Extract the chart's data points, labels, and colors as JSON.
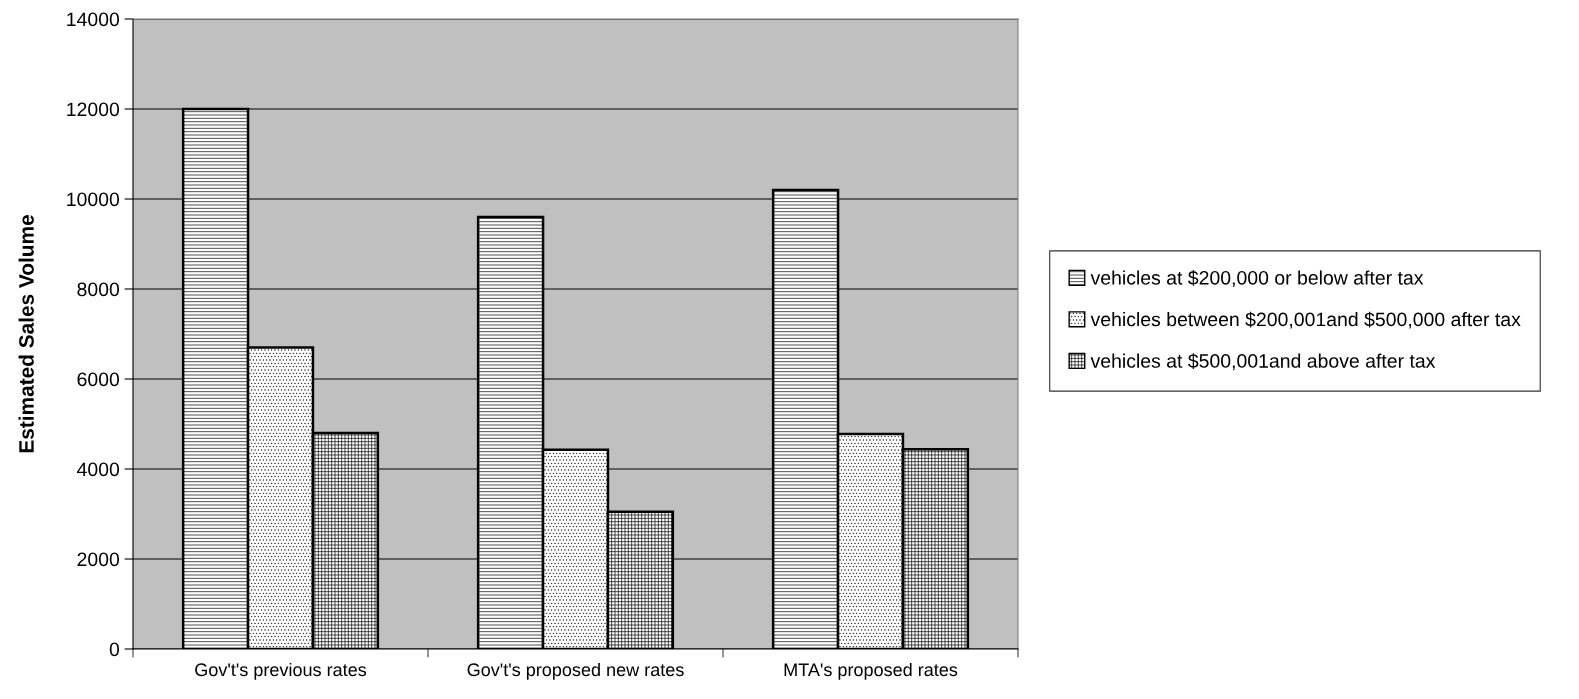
{
  "chart_data": {
    "type": "bar",
    "ylabel": "Estimated Sales Volume",
    "categories": [
      "Gov't's previous rates",
      "Gov't's proposed new rates",
      "MTA's proposed rates"
    ],
    "series": [
      {
        "name": "vehicles at $200,000 or below after tax",
        "color": "#000000",
        "values": [
          12000,
          9600,
          10200
        ]
      },
      {
        "name": "vehicles between $200,001and $500,000 after tax",
        "color": "#000000",
        "values": [
          6700,
          4430,
          4780
        ]
      },
      {
        "name": "vehicles at $500,001and above after tax",
        "color": "#000000",
        "values": [
          4800,
          3050,
          4440
        ]
      }
    ],
    "ylim": [
      0,
      14000
    ],
    "yticks": [
      0,
      2000,
      4000,
      6000,
      8000,
      10000,
      12000,
      14000
    ],
    "grid": "y",
    "legend": "right"
  }
}
